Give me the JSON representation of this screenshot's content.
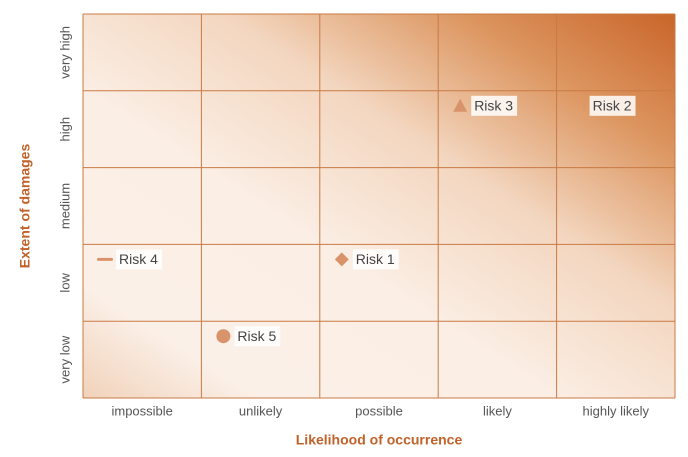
{
  "chart_data": {
    "type": "risk-matrix",
    "x_label": "Likelihood of occurrence",
    "y_label": "Extent of damages",
    "x_categories": [
      "impossible",
      "unlikely",
      "possible",
      "likely",
      "highly likely"
    ],
    "y_categories": [
      "very low",
      "low",
      "medium",
      "high",
      "very high"
    ],
    "grid_color": "#c97a44",
    "marker_color": "#d9936a",
    "points": [
      {
        "name": "Risk 1",
        "x": "possible",
        "y": "low",
        "marker": "diamond"
      },
      {
        "name": "Risk 2",
        "x": "highly likely",
        "y": "high",
        "marker": "tick"
      },
      {
        "name": "Risk 3",
        "x": "likely",
        "y": "high",
        "marker": "triangle"
      },
      {
        "name": "Risk 4",
        "x": "impossible",
        "y": "low",
        "marker": "dash"
      },
      {
        "name": "Risk 5",
        "x": "unlikely",
        "y": "very low",
        "marker": "circle"
      }
    ]
  }
}
